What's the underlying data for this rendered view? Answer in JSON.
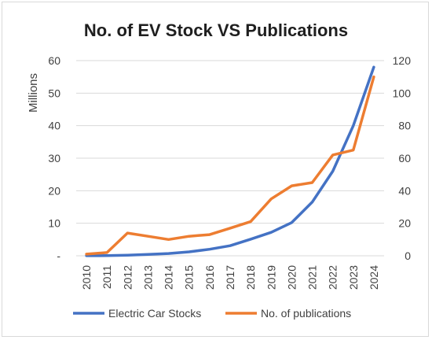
{
  "chart_data": {
    "type": "line",
    "title": "No. of EV Stock VS Publications",
    "ylabel": "Millions",
    "y2label": "",
    "xlabel": "",
    "x": [
      "2010",
      "2011",
      "2012",
      "2013",
      "2014",
      "2015",
      "2016",
      "2017",
      "2018",
      "2019",
      "2020",
      "2021",
      "2022",
      "2023",
      "2024"
    ],
    "ylim": [
      0,
      60
    ],
    "y2lim": [
      0,
      120
    ],
    "yticks": [
      "-",
      "10",
      "20",
      "30",
      "40",
      "50",
      "60"
    ],
    "y2ticks": [
      "0",
      "20",
      "40",
      "60",
      "80",
      "100",
      "120"
    ],
    "grid": true,
    "legend_position": "bottom",
    "series": [
      {
        "name": "Electric Car Stocks",
        "axis": "left",
        "color": "#4472c4",
        "values": [
          0.02,
          0.05,
          0.2,
          0.4,
          0.7,
          1.2,
          2.0,
          3.1,
          5.1,
          7.2,
          10.2,
          16.5,
          26.0,
          40.0,
          58.0
        ]
      },
      {
        "name": "No. of publications",
        "axis": "right",
        "color": "#ed7d31",
        "values": [
          1,
          2,
          14,
          12,
          10,
          12,
          13,
          17,
          21,
          35,
          43,
          45,
          62,
          65,
          110
        ]
      }
    ]
  }
}
